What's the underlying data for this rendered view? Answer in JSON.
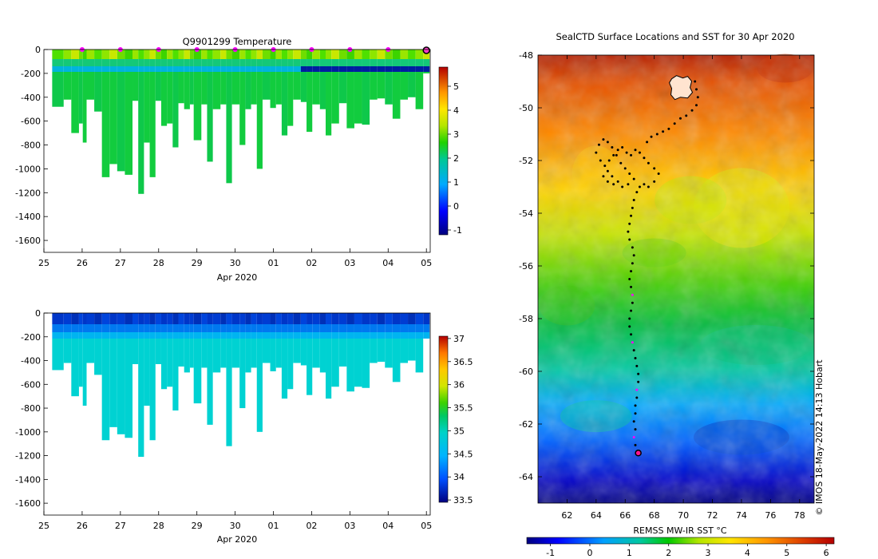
{
  "chart_data": [
    {
      "type": "heatmap",
      "title": "Q9901299  Temperature",
      "xlabel": "Apr 2020",
      "x_tick_labels": [
        "25",
        "26",
        "27",
        "28",
        "29",
        "30",
        "01",
        "02",
        "03",
        "04",
        "05"
      ],
      "y_tick_values": [
        0,
        -200,
        -400,
        -600,
        -800,
        -1000,
        -1200,
        -1400,
        -1600
      ],
      "ylim": [
        -1700,
        0
      ],
      "xlim": [
        25,
        35.1
      ],
      "colorbar_ticks": [
        5,
        4,
        3,
        2,
        1,
        0,
        -1
      ],
      "colorbar_range": [
        -1.2,
        5.8
      ],
      "marker_days": [
        26,
        27,
        28,
        29,
        30,
        31,
        32,
        33,
        34
      ],
      "current_day": 35,
      "profiles": [
        {
          "x": 25.3,
          "depth": 480
        },
        {
          "x": 25.6,
          "depth": 420
        },
        {
          "x": 25.8,
          "depth": 700
        },
        {
          "x": 26.0,
          "depth": 620
        },
        {
          "x": 26.1,
          "depth": 780
        },
        {
          "x": 26.2,
          "depth": 420
        },
        {
          "x": 26.4,
          "depth": 520
        },
        {
          "x": 26.6,
          "depth": 1070
        },
        {
          "x": 26.8,
          "depth": 960
        },
        {
          "x": 27.0,
          "depth": 1020
        },
        {
          "x": 27.2,
          "depth": 1050
        },
        {
          "x": 27.4,
          "depth": 430
        },
        {
          "x": 27.55,
          "depth": 1210
        },
        {
          "x": 27.7,
          "depth": 780
        },
        {
          "x": 27.85,
          "depth": 1070
        },
        {
          "x": 28.0,
          "depth": 430
        },
        {
          "x": 28.15,
          "depth": 640
        },
        {
          "x": 28.3,
          "depth": 620
        },
        {
          "x": 28.45,
          "depth": 820
        },
        {
          "x": 28.6,
          "depth": 450
        },
        {
          "x": 28.75,
          "depth": 500
        },
        {
          "x": 28.9,
          "depth": 460
        },
        {
          "x": 29.0,
          "depth": 760
        },
        {
          "x": 29.2,
          "depth": 460
        },
        {
          "x": 29.35,
          "depth": 940
        },
        {
          "x": 29.5,
          "depth": 500
        },
        {
          "x": 29.7,
          "depth": 460
        },
        {
          "x": 29.85,
          "depth": 1120
        },
        {
          "x": 30.0,
          "depth": 460
        },
        {
          "x": 30.2,
          "depth": 800
        },
        {
          "x": 30.35,
          "depth": 500
        },
        {
          "x": 30.5,
          "depth": 460
        },
        {
          "x": 30.65,
          "depth": 1000
        },
        {
          "x": 30.8,
          "depth": 420
        },
        {
          "x": 31.0,
          "depth": 490
        },
        {
          "x": 31.15,
          "depth": 460
        },
        {
          "x": 31.3,
          "depth": 720
        },
        {
          "x": 31.45,
          "depth": 640
        },
        {
          "x": 31.6,
          "depth": 420
        },
        {
          "x": 31.8,
          "depth": 440
        },
        {
          "x": 31.95,
          "depth": 690
        },
        {
          "x": 32.1,
          "depth": 460
        },
        {
          "x": 32.3,
          "depth": 500
        },
        {
          "x": 32.45,
          "depth": 720
        },
        {
          "x": 32.6,
          "depth": 620
        },
        {
          "x": 32.8,
          "depth": 450
        },
        {
          "x": 33.0,
          "depth": 660
        },
        {
          "x": 33.2,
          "depth": 620
        },
        {
          "x": 33.4,
          "depth": 630
        },
        {
          "x": 33.6,
          "depth": 420
        },
        {
          "x": 33.8,
          "depth": 410
        },
        {
          "x": 34.0,
          "depth": 460
        },
        {
          "x": 34.2,
          "depth": 580
        },
        {
          "x": 34.4,
          "depth": 420
        },
        {
          "x": 34.6,
          "depth": 400
        },
        {
          "x": 34.8,
          "depth": 500
        },
        {
          "x": 35.0,
          "depth": 200
        }
      ]
    },
    {
      "type": "heatmap",
      "title": "",
      "xlabel": "Apr 2020",
      "x_tick_labels": [
        "25",
        "26",
        "27",
        "28",
        "29",
        "30",
        "01",
        "02",
        "03",
        "04",
        "05"
      ],
      "y_tick_values": [
        0,
        -200,
        -400,
        -600,
        -800,
        -1000,
        -1200,
        -1400,
        -1600
      ],
      "ylim": [
        -1700,
        0
      ],
      "xlim": [
        25,
        35.1
      ],
      "colorbar_ticks": [
        37,
        36.5,
        36,
        35.5,
        35,
        34.5,
        34,
        33.5
      ],
      "colorbar_range": [
        33.45,
        37.05
      ]
    },
    {
      "type": "heatmap",
      "title": "SealCTD Surface Locations and SST for 30 Apr 2020",
      "xlabel": "REMSS MW-IR SST °C",
      "x_tick_labels": [
        "62",
        "64",
        "66",
        "68",
        "70",
        "72",
        "74",
        "76",
        "78"
      ],
      "y_tick_labels": [
        "-48",
        "-50",
        "-52",
        "-54",
        "-56",
        "-58",
        "-60",
        "-62",
        "-64"
      ],
      "lon_range": [
        60,
        79
      ],
      "lat_range": [
        -65,
        -48
      ],
      "colorbar_ticks": [
        "-1",
        "0",
        "1",
        "2",
        "3",
        "4",
        "5",
        "6"
      ],
      "colorbar_range": [
        -1.6,
        6.2
      ],
      "annotation": "© IMOS 18-May-2022 14:13 Hobart",
      "current_position": {
        "lon": 66.9,
        "lat": -63.1
      }
    }
  ]
}
